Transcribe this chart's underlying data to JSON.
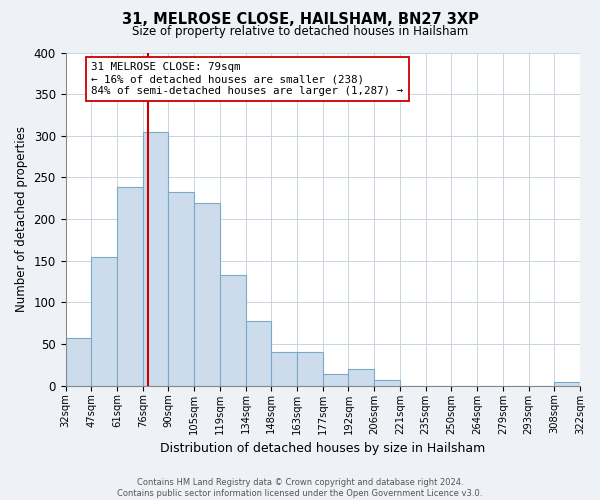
{
  "title": "31, MELROSE CLOSE, HAILSHAM, BN27 3XP",
  "subtitle": "Size of property relative to detached houses in Hailsham",
  "xlabel": "Distribution of detached houses by size in Hailsham",
  "ylabel": "Number of detached properties",
  "bar_labels": [
    "32sqm",
    "47sqm",
    "61sqm",
    "76sqm",
    "90sqm",
    "105sqm",
    "119sqm",
    "134sqm",
    "148sqm",
    "163sqm",
    "177sqm",
    "192sqm",
    "206sqm",
    "221sqm",
    "235sqm",
    "250sqm",
    "264sqm",
    "279sqm",
    "293sqm",
    "308sqm",
    "322sqm"
  ],
  "bar_heights": [
    57,
    154,
    238,
    305,
    233,
    219,
    133,
    78,
    41,
    41,
    14,
    20,
    7,
    0,
    0,
    0,
    0,
    0,
    0,
    4
  ],
  "bar_color": "#ccdcec",
  "bar_edge_color": "#7aaac8",
  "property_line_color": "#cc0000",
  "annotation_text": "31 MELROSE CLOSE: 79sqm\n← 16% of detached houses are smaller (238)\n84% of semi-detached houses are larger (1,287) →",
  "annotation_box_color": "#ffffff",
  "annotation_box_edge_color": "#cc0000",
  "ylim": [
    0,
    400
  ],
  "yticks": [
    0,
    50,
    100,
    150,
    200,
    250,
    300,
    350,
    400
  ],
  "footer_line1": "Contains HM Land Registry data © Crown copyright and database right 2024.",
  "footer_line2": "Contains public sector information licensed under the Open Government Licence v3.0.",
  "background_color": "#eef2f6",
  "plot_background_color": "#ffffff",
  "grid_color": "#c8d4de"
}
